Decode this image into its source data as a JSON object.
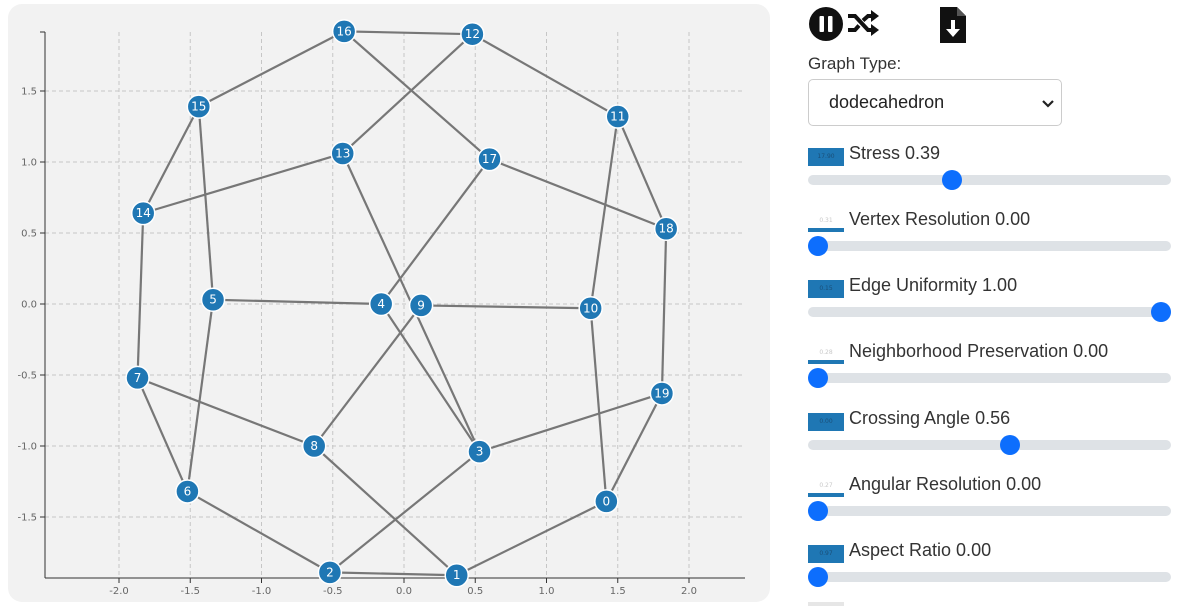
{
  "plot": {
    "x_ticks": [
      "-2.0",
      "-1.5",
      "-1.0",
      "-0.5",
      "0.0",
      "0.5",
      "1.0",
      "1.5",
      "2.0"
    ],
    "y_ticks": [
      "1.5",
      "1.0",
      "0.5",
      "0.0",
      "-0.5",
      "-1.0",
      "-1.5"
    ],
    "x_tick_values": [
      -2.0,
      -1.5,
      -1.0,
      -0.5,
      0.0,
      0.5,
      1.0,
      1.5,
      2.0
    ],
    "y_tick_values": [
      1.5,
      1.0,
      0.5,
      0.0,
      -0.5,
      -1.0,
      -1.5
    ],
    "xlim": [
      -2.46,
      2.46
    ],
    "ylim": [
      -1.92,
      1.92
    ],
    "node_color": "#1f77b4",
    "edge_color": "#777777",
    "nodes": [
      {
        "id": "0",
        "x": 1.42,
        "y": -1.39
      },
      {
        "id": "1",
        "x": 0.37,
        "y": -1.91
      },
      {
        "id": "2",
        "x": -0.52,
        "y": -1.89
      },
      {
        "id": "3",
        "x": 0.53,
        "y": -1.04
      },
      {
        "id": "4",
        "x": -0.16,
        "y": 0.0
      },
      {
        "id": "5",
        "x": -1.34,
        "y": 0.03
      },
      {
        "id": "6",
        "x": -1.52,
        "y": -1.32
      },
      {
        "id": "7",
        "x": -1.87,
        "y": -0.52
      },
      {
        "id": "8",
        "x": -0.63,
        "y": -1.0
      },
      {
        "id": "9",
        "x": 0.12,
        "y": -0.01
      },
      {
        "id": "10",
        "x": 1.31,
        "y": -0.03
      },
      {
        "id": "11",
        "x": 1.5,
        "y": 1.32
      },
      {
        "id": "12",
        "x": 0.48,
        "y": 1.9
      },
      {
        "id": "13",
        "x": -0.43,
        "y": 1.06
      },
      {
        "id": "14",
        "x": -1.83,
        "y": 0.64
      },
      {
        "id": "15",
        "x": -1.44,
        "y": 1.39
      },
      {
        "id": "16",
        "x": -0.42,
        "y": 1.92
      },
      {
        "id": "17",
        "x": 0.6,
        "y": 1.02
      },
      {
        "id": "18",
        "x": 1.84,
        "y": 0.53
      },
      {
        "id": "19",
        "x": 1.81,
        "y": -0.63
      }
    ],
    "edges": [
      [
        "16",
        "12"
      ],
      [
        "16",
        "15"
      ],
      [
        "16",
        "17"
      ],
      [
        "12",
        "11"
      ],
      [
        "12",
        "13"
      ],
      [
        "15",
        "14"
      ],
      [
        "15",
        "5"
      ],
      [
        "11",
        "18"
      ],
      [
        "11",
        "10"
      ],
      [
        "13",
        "14"
      ],
      [
        "13",
        "3"
      ],
      [
        "17",
        "18"
      ],
      [
        "17",
        "4"
      ],
      [
        "14",
        "7"
      ],
      [
        "18",
        "19"
      ],
      [
        "5",
        "4"
      ],
      [
        "5",
        "6"
      ],
      [
        "9",
        "10"
      ],
      [
        "9",
        "8"
      ],
      [
        "4",
        "3"
      ],
      [
        "10",
        "0"
      ],
      [
        "7",
        "6"
      ],
      [
        "7",
        "8"
      ],
      [
        "19",
        "0"
      ],
      [
        "19",
        "3"
      ],
      [
        "8",
        "1"
      ],
      [
        "3",
        "2"
      ],
      [
        "6",
        "2"
      ],
      [
        "0",
        "1"
      ],
      [
        "2",
        "1"
      ]
    ]
  },
  "toolbar": {
    "pause_icon": "pause-icon",
    "shuffle_icon": "shuffle-icon",
    "download_icon": "download-file-icon"
  },
  "controls": {
    "graph_type_label": "Graph Type:",
    "graph_type_selected": "dodecahedron",
    "metrics": [
      {
        "label": "Stress 0.39",
        "badge": "17.90",
        "badge_style": "filled",
        "slider_value": 0.39
      },
      {
        "label": "Vertex Resolution 0.00",
        "badge": "0.31",
        "badge_style": "hollow",
        "slider_value": 0.0
      },
      {
        "label": "Edge Uniformity 1.00",
        "badge": "0.15",
        "badge_style": "filled",
        "slider_value": 1.0
      },
      {
        "label": "Neighborhood Preservation 0.00",
        "badge": "0.28",
        "badge_style": "hollow",
        "slider_value": 0.0
      },
      {
        "label": "Crossing Angle 0.56",
        "badge": "0.00",
        "badge_style": "filled",
        "slider_value": 0.56
      },
      {
        "label": "Angular Resolution 0.00",
        "badge": "0.27",
        "badge_style": "hollow",
        "slider_value": 0.0
      },
      {
        "label": "Aspect Ratio 0.00",
        "badge": "0.97",
        "badge_style": "filled",
        "slider_value": 0.0
      }
    ],
    "accent_color": "#0d6efd"
  }
}
